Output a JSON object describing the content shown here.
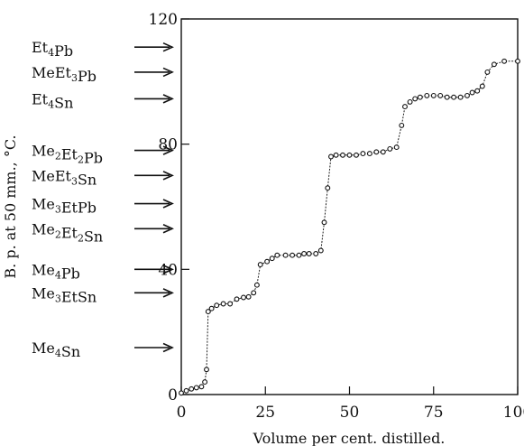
{
  "chart_data": {
    "type": "scatter",
    "title": "",
    "xlabel": "Volume per cent. distilled.",
    "ylabel": "B. p. at 50 mm., °C.",
    "xlim": [
      0,
      100
    ],
    "ylim": [
      0,
      120
    ],
    "x_ticks": [
      "0",
      "25",
      "50",
      "75",
      "100"
    ],
    "y_ticks": [
      "0",
      "40",
      "80",
      "120"
    ],
    "grid": false,
    "series": [
      {
        "points": [
          [
            0,
            0.5
          ],
          [
            1.5,
            1.2
          ],
          [
            3,
            1.8
          ],
          [
            4.5,
            2.2
          ],
          [
            6,
            2.5
          ],
          [
            7,
            4
          ],
          [
            7.5,
            8
          ],
          [
            8,
            26.5
          ],
          [
            9,
            27.5
          ],
          [
            10.5,
            28.5
          ],
          [
            12.5,
            29
          ],
          [
            14.5,
            29
          ],
          [
            16.5,
            30.5
          ],
          [
            18.5,
            31
          ],
          [
            20,
            31.2
          ],
          [
            21.5,
            32.5
          ],
          [
            22.5,
            35
          ],
          [
            23.5,
            41.5
          ],
          [
            25.5,
            42.5
          ],
          [
            27,
            43.5
          ],
          [
            28.5,
            44.5
          ],
          [
            31,
            44.5
          ],
          [
            33,
            44.5
          ],
          [
            35,
            44.5
          ],
          [
            36.5,
            45
          ],
          [
            38,
            45
          ],
          [
            40,
            45
          ],
          [
            41.5,
            46
          ],
          [
            42.5,
            55
          ],
          [
            43.5,
            66
          ],
          [
            44.5,
            76
          ],
          [
            46,
            76.5
          ],
          [
            48,
            76.5
          ],
          [
            50,
            76.5
          ],
          [
            52,
            76.5
          ],
          [
            54,
            77
          ],
          [
            56,
            77
          ],
          [
            58,
            77.5
          ],
          [
            60,
            77.5
          ],
          [
            62,
            78.5
          ],
          [
            64,
            79
          ],
          [
            65.5,
            86
          ],
          [
            66.5,
            92
          ],
          [
            68,
            93.5
          ],
          [
            69.5,
            94.5
          ],
          [
            71,
            95
          ],
          [
            73,
            95.5
          ],
          [
            75,
            95.5
          ],
          [
            77,
            95.5
          ],
          [
            79,
            95
          ],
          [
            81,
            95
          ],
          [
            83,
            95
          ],
          [
            85,
            95.5
          ],
          [
            86.5,
            96.5
          ],
          [
            88,
            97
          ],
          [
            89.5,
            98.5
          ],
          [
            91,
            103
          ],
          [
            93,
            105.5
          ],
          [
            96,
            106.5
          ],
          [
            100,
            106.5
          ]
        ]
      }
    ],
    "annotations": [
      {
        "label": "Et4Pb",
        "y": 111
      },
      {
        "label": "MeEt3Pb",
        "y": 103
      },
      {
        "label": "Et4Sn",
        "y": 94.5
      },
      {
        "label": "Me2Et2Pb",
        "y": 78
      },
      {
        "label": "MeEt3Sn",
        "y": 70
      },
      {
        "label": "Me3EtPb",
        "y": 61
      },
      {
        "label": "Me2Et2Sn",
        "y": 53
      },
      {
        "label": "Me4Pb",
        "y": 40
      },
      {
        "label": "Me3EtSn",
        "y": 32.5
      },
      {
        "label": "Me4Sn",
        "y": 15
      }
    ]
  }
}
